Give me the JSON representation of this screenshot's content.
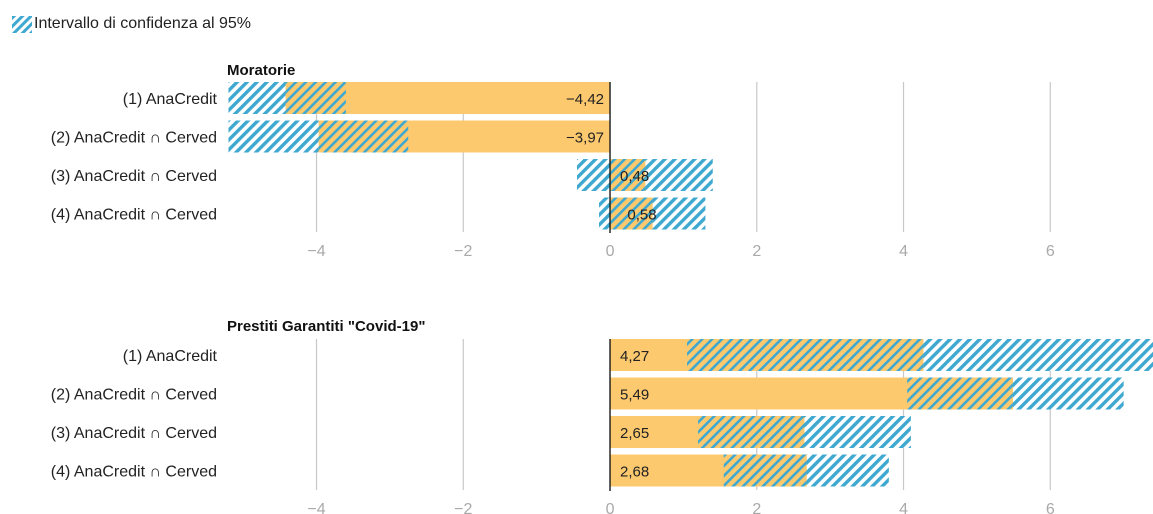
{
  "legend": {
    "label": "Intervallo di confidenza al 95%"
  },
  "colors": {
    "bar": "#fcc96f",
    "ci": "#3ea8d0",
    "grid": "#c8c8c8",
    "zero": "#1a1a1a",
    "tick": "#a9a9a9"
  },
  "chart_data": [
    {
      "type": "bar",
      "orientation": "horizontal",
      "title": "Moratorie",
      "categories": [
        "(1) AnaCredit",
        "(2) AnaCredit ∩ Cerved",
        "(3) AnaCredit ∩ Cerved",
        "(4) AnaCredit ∩ Cerved"
      ],
      "values": [
        -4.42,
        -3.97,
        0.48,
        0.58
      ],
      "value_labels": [
        "−4,42",
        "−3,97",
        "0,48",
        "0,58"
      ],
      "ci": [
        [
          -5.2,
          -3.6
        ],
        [
          -5.2,
          -2.75
        ],
        [
          -0.45,
          1.4
        ],
        [
          -0.15,
          1.3
        ]
      ],
      "xticks": [
        -4,
        -2,
        0,
        2,
        4,
        6
      ],
      "xtick_labels": [
        "−4",
        "−2",
        "0",
        "2",
        "4",
        "6"
      ],
      "xlim": [
        -5.22,
        7.4
      ],
      "grid": true
    },
    {
      "type": "bar",
      "orientation": "horizontal",
      "title": "Prestiti Garantiti \"Covid-19\"",
      "categories": [
        "(1) AnaCredit",
        "(2) AnaCredit ∩ Cerved",
        "(3) AnaCredit ∩ Cerved",
        "(4) AnaCredit ∩ Cerved"
      ],
      "values": [
        4.27,
        5.49,
        2.65,
        2.68
      ],
      "value_labels": [
        "4,27",
        "5,49",
        "2,65",
        "2,68"
      ],
      "ci": [
        [
          1.05,
          7.4
        ],
        [
          4.05,
          7.0
        ],
        [
          1.2,
          4.1
        ],
        [
          1.55,
          3.8
        ]
      ],
      "xticks": [
        -4,
        -2,
        0,
        2,
        4,
        6
      ],
      "xtick_labels": [
        "−4",
        "−2",
        "0",
        "2",
        "4",
        "6"
      ],
      "xlim": [
        -5.22,
        7.4
      ],
      "grid": true
    }
  ]
}
